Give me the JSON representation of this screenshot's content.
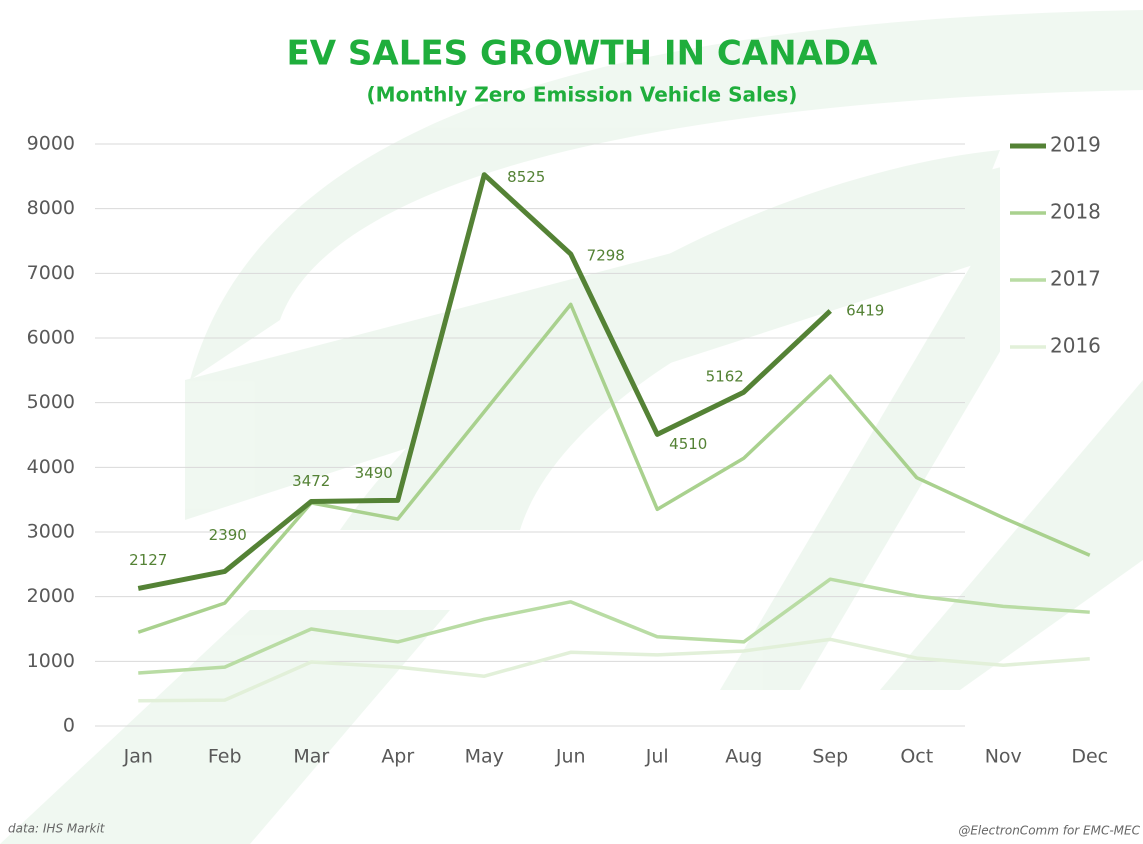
{
  "chart_data": {
    "type": "line",
    "title": "EV SALES GROWTH IN CANADA",
    "subtitle": "(Monthly Zero Emission Vehicle Sales)",
    "categories": [
      "Jan",
      "Feb",
      "Mar",
      "Apr",
      "May",
      "Jun",
      "Jul",
      "Aug",
      "Sep",
      "Oct",
      "Nov",
      "Dec"
    ],
    "series": [
      {
        "name": "2019",
        "color": "#548235",
        "width": 5,
        "data_labels": true,
        "values": [
          2127,
          2390,
          3472,
          3490,
          8525,
          7298,
          4510,
          5162,
          6419,
          null,
          null,
          null
        ]
      },
      {
        "name": "2018",
        "color": "#a9d18e",
        "width": 3.5,
        "values": [
          1450,
          1900,
          3450,
          3200,
          4860,
          6520,
          3350,
          4140,
          5410,
          3840,
          3220,
          2640
        ]
      },
      {
        "name": "2017",
        "color": "#b9dca4",
        "width": 3.5,
        "values": [
          820,
          910,
          1500,
          1300,
          1650,
          1920,
          1380,
          1300,
          2270,
          2010,
          1850,
          1760
        ]
      },
      {
        "name": "2016",
        "color": "#e2f0d9",
        "width": 3.5,
        "values": [
          390,
          400,
          990,
          910,
          770,
          1140,
          1100,
          1160,
          1340,
          1050,
          940,
          1040
        ]
      }
    ],
    "ylim": [
      0,
      9000
    ],
    "yticks": [
      0,
      1000,
      2000,
      3000,
      4000,
      5000,
      6000,
      7000,
      8000,
      9000
    ],
    "grid": true,
    "legend": "right",
    "source": "data: IHS Markit",
    "credit": "@ElectronComm for EMC-MEC"
  }
}
